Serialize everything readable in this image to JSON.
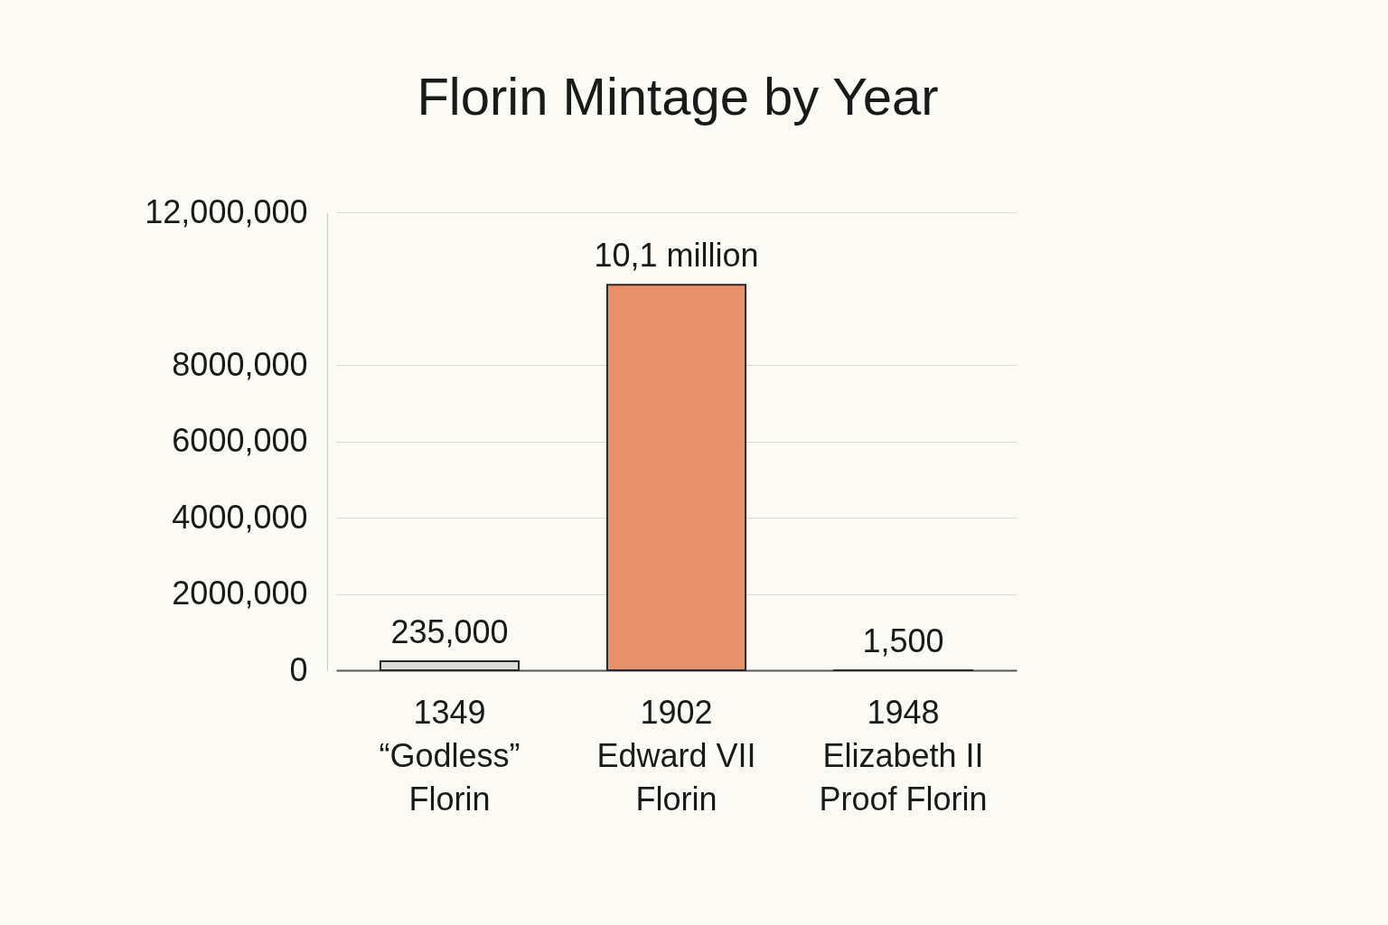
{
  "chart_data": {
    "type": "bar",
    "title": "Florin Mintage by Year",
    "categories": [
      "1349\n“Godless”\nFlorin",
      "1902\nEdward VII\nFlorin",
      "1948\nElizabeth II\nProof Florin"
    ],
    "values": [
      235000,
      10100000,
      1500
    ],
    "value_labels": [
      "235,000",
      "10,1 million",
      "1,500"
    ],
    "colors": [
      "#dddbd5",
      "#e8906a",
      "#bcc8cc"
    ],
    "ylim": [
      0,
      12000000
    ],
    "yticks": [
      0,
      {
        "value": 2000000,
        "label": "2000,000"
      },
      {
        "value": 4000000,
        "label": "4000,000"
      },
      {
        "value": 6000000,
        "label": "6000,000"
      },
      {
        "value": 8000000,
        "label": "8000,000"
      },
      {
        "value": 12000000,
        "label": "12,000,000"
      }
    ],
    "grid": "y"
  }
}
